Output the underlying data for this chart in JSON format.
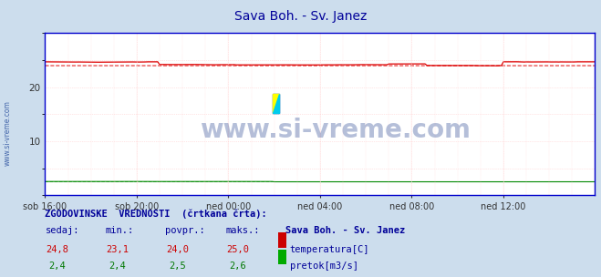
{
  "title": "Sava Boh. - Sv. Janez",
  "title_color": "#000099",
  "bg_color": "#ccdded",
  "plot_bg_color": "#ffffff",
  "grid_color": "#ffcccc",
  "ylim": [
    0,
    30
  ],
  "yticks": [
    10,
    20
  ],
  "xlim": [
    0,
    288
  ],
  "xtick_labels": [
    "sob 16:00",
    "sob 20:00",
    "ned 00:00",
    "ned 04:00",
    "ned 08:00",
    "ned 12:00"
  ],
  "xtick_positions": [
    0,
    48,
    96,
    144,
    192,
    240
  ],
  "temp_color": "#dd0000",
  "flow_color": "#008800",
  "spine_color": "#0000cc",
  "watermark_color": "#1a3a8a",
  "watermark_text": "www.si-vreme.com",
  "sidebar_text": "www.si-vreme.com",
  "sidebar_color": "#4466aa",
  "footer_title": "ZGODOVINSKE  VREDNOSTI  (črtkana črta):",
  "footer_col1": "sedaj:",
  "footer_col2": "min.:",
  "footer_col3": "povpr.:",
  "footer_col4": "maks.:",
  "footer_col5": "Sava Boh. - Sv. Janez",
  "footer_temp_vals": [
    "24,8",
    "23,1",
    "24,0",
    "25,0"
  ],
  "footer_flow_vals": [
    "2,4",
    "2,4",
    "2,5",
    "2,6"
  ],
  "footer_temp_label": "temperatura[C]",
  "footer_flow_label": "pretok[m3/s]",
  "temp_mean": 24.0,
  "temp_min": 23.1,
  "temp_max": 25.0,
  "temp_current": 24.8,
  "flow_mean": 2.5,
  "flow_min": 2.4,
  "flow_max": 2.6,
  "flow_current": 2.4
}
